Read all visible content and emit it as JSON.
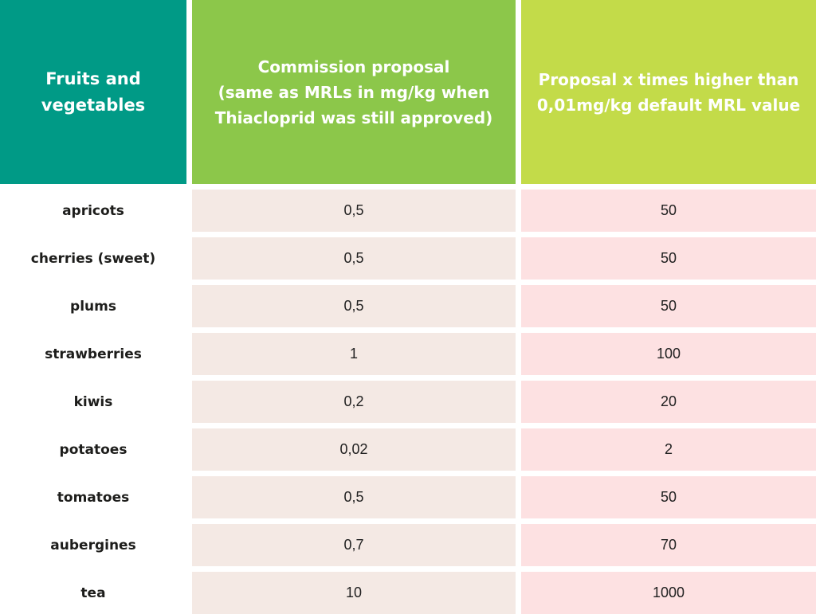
{
  "colors": {
    "col1_header_bg": "#009a86",
    "col2_header_bg": "#8cc74a",
    "col3_header_bg": "#c3db49",
    "col2_cell_bg": "#f4e9e4",
    "col3_cell_bg": "#fde1e2",
    "header_text": "#ffffff",
    "body_text": "#1d1d1b"
  },
  "table": {
    "headers": {
      "col1": "Fruits and\nvegetables",
      "col2": "Commission proposal\n(same as MRLs in mg/kg when\nThiacloprid was still approved)",
      "col3": "Proposal x times higher than\n0,01mg/kg default MRL value"
    },
    "rows": [
      {
        "name": "apricots",
        "proposal": "0,5",
        "times": "50"
      },
      {
        "name": "cherries (sweet)",
        "proposal": "0,5",
        "times": "50"
      },
      {
        "name": "plums",
        "proposal": "0,5",
        "times": "50"
      },
      {
        "name": "strawberries",
        "proposal": "1",
        "times": "100"
      },
      {
        "name": "kiwis",
        "proposal": "0,2",
        "times": "20"
      },
      {
        "name": "potatoes",
        "proposal": "0,02",
        "times": "2"
      },
      {
        "name": "tomatoes",
        "proposal": "0,5",
        "times": "50"
      },
      {
        "name": "aubergines",
        "proposal": "0,7",
        "times": "70"
      },
      {
        "name": "tea",
        "proposal": "10",
        "times": "1000"
      }
    ]
  },
  "chart_data": {
    "type": "table",
    "title": "",
    "columns": [
      "Fruits and vegetables",
      "Commission proposal (same as MRLs in mg/kg when Thiacloprid was still approved)",
      "Proposal x times higher than 0,01mg/kg default MRL value"
    ],
    "rows": [
      [
        "apricots",
        "0,5",
        "50"
      ],
      [
        "cherries (sweet)",
        "0,5",
        "50"
      ],
      [
        "plums",
        "0,5",
        "50"
      ],
      [
        "strawberries",
        "1",
        "100"
      ],
      [
        "kiwis",
        "0,2",
        "20"
      ],
      [
        "potatoes",
        "0,02",
        "2"
      ],
      [
        "tomatoes",
        "0,5",
        "50"
      ],
      [
        "aubergines",
        "0,7",
        "70"
      ],
      [
        "tea",
        "10",
        "1000"
      ]
    ]
  }
}
